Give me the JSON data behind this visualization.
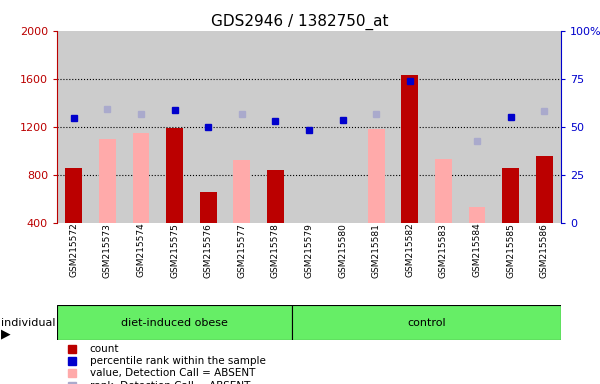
{
  "title": "GDS2946 / 1382750_at",
  "samples": [
    "GSM215572",
    "GSM215573",
    "GSM215574",
    "GSM215575",
    "GSM215576",
    "GSM215577",
    "GSM215578",
    "GSM215579",
    "GSM215580",
    "GSM215581",
    "GSM215582",
    "GSM215583",
    "GSM215584",
    "GSM215585",
    "GSM215586"
  ],
  "n_dio": 7,
  "n_ctrl": 8,
  "count_values": [
    860,
    null,
    null,
    1190,
    660,
    null,
    840,
    null,
    null,
    null,
    1630,
    null,
    null,
    860,
    960
  ],
  "absent_value_values": [
    null,
    1100,
    1150,
    null,
    null,
    920,
    null,
    null,
    null,
    1180,
    null,
    930,
    530,
    null,
    null
  ],
  "percentile_rank_values": [
    1270,
    null,
    null,
    1340,
    1200,
    null,
    1250,
    1170,
    1260,
    null,
    1580,
    null,
    null,
    1280,
    null
  ],
  "absent_rank_values": [
    null,
    1350,
    1310,
    null,
    null,
    1310,
    null,
    null,
    null,
    1310,
    null,
    null,
    1080,
    null,
    1330
  ],
  "ylim_left": [
    400,
    2000
  ],
  "ylim_right": [
    0,
    100
  ],
  "yticks_left": [
    400,
    800,
    1200,
    1600,
    2000
  ],
  "yticks_right": [
    0,
    25,
    50,
    75,
    100
  ],
  "right_tick_labels": [
    "0",
    "25",
    "50",
    "75",
    "100%"
  ],
  "grid_lines": [
    800,
    1200,
    1600
  ],
  "bar_width": 0.5,
  "count_color": "#bb0000",
  "absent_value_color": "#ffaaaa",
  "percentile_rank_color": "#0000cc",
  "absent_rank_color": "#aaaacc",
  "col_bg_color": "#cccccc",
  "plot_bg_color": "#e8e8e8",
  "group_color": "#66ee66",
  "fig_bg": "#ffffff",
  "legend_items": [
    {
      "label": "count",
      "color": "#bb0000"
    },
    {
      "label": "percentile rank within the sample",
      "color": "#0000cc"
    },
    {
      "label": "value, Detection Call = ABSENT",
      "color": "#ffaaaa"
    },
    {
      "label": "rank, Detection Call = ABSENT",
      "color": "#aaaacc"
    }
  ]
}
